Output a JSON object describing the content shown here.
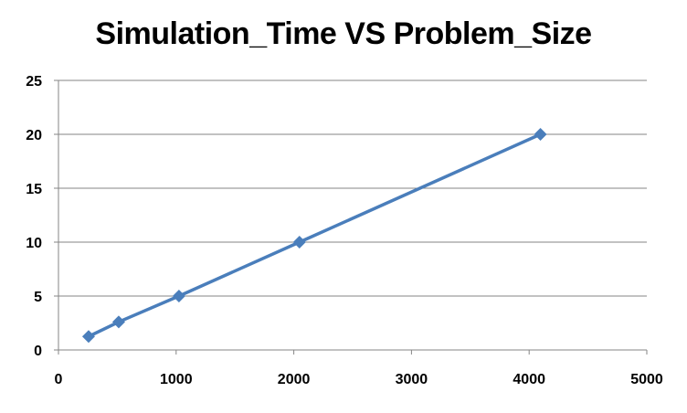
{
  "chart_data": {
    "type": "line",
    "title": "Simulation_Time VS Problem_Size",
    "xlabel": "",
    "ylabel": "",
    "xlim": [
      0,
      5000
    ],
    "ylim": [
      0,
      25
    ],
    "x_ticks": [
      0,
      1000,
      2000,
      3000,
      4000,
      5000
    ],
    "y_ticks": [
      0,
      5,
      10,
      15,
      20,
      25
    ],
    "grid": "horizontal",
    "legend": "none",
    "series": [
      {
        "color": "#4a7ebb",
        "marker": "diamond",
        "x": [
          256,
          512,
          1024,
          2048,
          4096
        ],
        "y": [
          1.25,
          2.6,
          5.0,
          10.0,
          20.0
        ]
      }
    ]
  }
}
